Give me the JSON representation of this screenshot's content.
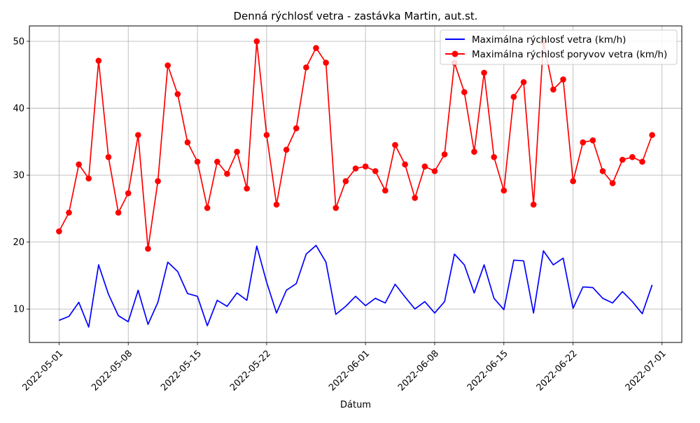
{
  "chart_data": {
    "type": "line",
    "title": "Denná rýchlosť vetra - zastávka Martin, aut.st.",
    "xlabel": "Dátum",
    "ylabel": "",
    "x_start": "2022-05-01",
    "xlim": [
      "2022-04-28",
      "2022-07-03"
    ],
    "ylim": [
      5,
      52.3
    ],
    "x_ticks": [
      "2022-05-01",
      "2022-05-08",
      "2022-05-15",
      "2022-05-22",
      "2022-06-01",
      "2022-06-08",
      "2022-06-15",
      "2022-06-22",
      "2022-07-01"
    ],
    "y_ticks": [
      10,
      20,
      30,
      40,
      50
    ],
    "grid": true,
    "legend_position": "top-right",
    "series": [
      {
        "name": "Maximálna rýchlosť vetra (km/h)",
        "color": "#0000ff",
        "marker": "none",
        "values": [
          8.3,
          8.9,
          11.0,
          7.3,
          16.6,
          12.2,
          9.0,
          8.1,
          12.8,
          7.7,
          11.0,
          17.0,
          15.6,
          12.3,
          11.9,
          7.5,
          11.3,
          10.4,
          12.4,
          11.3,
          19.4,
          14.0,
          9.4,
          12.8,
          13.8,
          18.2,
          19.5,
          17.0,
          9.2,
          10.4,
          11.9,
          10.5,
          11.6,
          10.9,
          13.7,
          11.8,
          10.0,
          11.1,
          9.4,
          11.1,
          18.2,
          16.6,
          12.4,
          16.6,
          11.6,
          9.9,
          17.3,
          17.2,
          9.4,
          18.7,
          16.6,
          17.6,
          10.1,
          13.3,
          13.2,
          11.6,
          10.9,
          12.6,
          11.1,
          9.3,
          13.6
        ]
      },
      {
        "name": "Maximálna rýchlosť poryvov vetra (km/h)",
        "color": "#ff0000",
        "marker": "circle",
        "values": [
          21.6,
          24.4,
          31.6,
          29.5,
          47.1,
          32.7,
          24.4,
          27.3,
          36.0,
          19.0,
          29.1,
          46.4,
          42.1,
          34.9,
          32.0,
          25.1,
          32.0,
          30.2,
          33.5,
          28.0,
          50.0,
          36.0,
          25.6,
          33.8,
          37.0,
          46.1,
          49.0,
          46.8,
          25.1,
          29.1,
          31.0,
          31.3,
          30.6,
          27.7,
          34.5,
          31.6,
          26.6,
          31.3,
          30.6,
          33.1,
          46.8,
          42.4,
          33.5,
          45.3,
          32.7,
          27.7,
          41.7,
          43.9,
          25.6,
          49.9,
          42.8,
          44.3,
          29.1,
          34.9,
          35.2,
          30.6,
          28.8,
          32.3,
          32.7,
          32.0,
          36.0
        ]
      }
    ]
  }
}
